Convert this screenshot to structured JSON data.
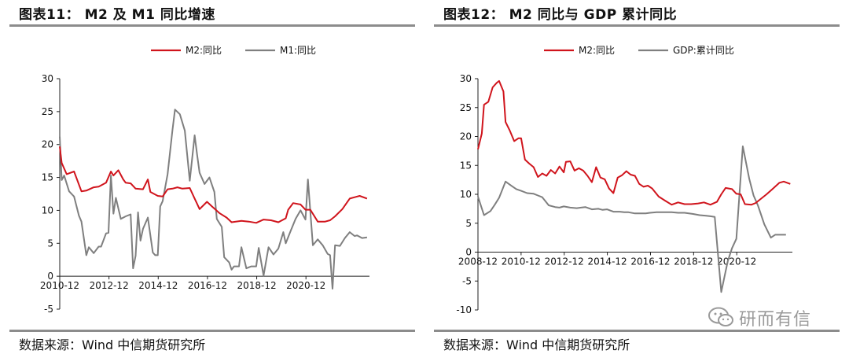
{
  "charts": [
    {
      "figure_title": "图表11： M2 及 M1 同比增速",
      "source_text": "数据来源：Wind 中信期货研究所"
    },
    {
      "figure_title": "图表12： M2 同比与 GDP 累计同比",
      "source_text": "数据来源：Wind 中信期货研究所"
    }
  ],
  "watermark": {
    "text": "研而有信",
    "icon": "wechat-icon"
  },
  "chart_data": [
    {
      "type": "line",
      "title": "图表11： M2 及 M1 同比增速",
      "xlabel": "",
      "ylabel": "",
      "ylim": [
        -5,
        30
      ],
      "yticks": [
        -5,
        0,
        5,
        10,
        15,
        20,
        25,
        30
      ],
      "xlim": [
        2010.92,
        2023.5
      ],
      "xticks": [
        {
          "x": 2010.92,
          "label": "2010-12"
        },
        {
          "x": 2012.92,
          "label": "2012-12"
        },
        {
          "x": 2014.92,
          "label": "2014-12"
        },
        {
          "x": 2016.92,
          "label": "2016-12"
        },
        {
          "x": 2018.92,
          "label": "2018-12"
        },
        {
          "x": 2020.92,
          "label": "2020-12"
        }
      ],
      "grid": false,
      "legend": "top-center",
      "series": [
        {
          "name": "M2:同比",
          "color": "#d0141c",
          "x": [
            2010.92,
            2011.0,
            2011.2,
            2011.5,
            2011.8,
            2012.0,
            2012.3,
            2012.5,
            2012.8,
            2013.0,
            2013.1,
            2013.3,
            2013.5,
            2013.6,
            2013.8,
            2014.0,
            2014.3,
            2014.5,
            2014.6,
            2014.9,
            2015.1,
            2015.3,
            2015.5,
            2015.7,
            2015.9,
            2016.2,
            2016.4,
            2016.6,
            2016.9,
            2017.1,
            2017.4,
            2017.7,
            2017.9,
            2018.3,
            2018.6,
            2018.9,
            2019.2,
            2019.5,
            2019.8,
            2020.1,
            2020.2,
            2020.4,
            2020.7,
            2020.9,
            2021.1,
            2021.4,
            2021.7,
            2021.9,
            2022.1,
            2022.4,
            2022.7,
            2022.9,
            2023.1,
            2023.4
          ],
          "y": [
            19.7,
            17.2,
            15.5,
            15.9,
            12.9,
            13.0,
            13.5,
            13.6,
            14.2,
            15.9,
            15.3,
            16.1,
            14.7,
            14.2,
            14.1,
            13.3,
            13.2,
            14.7,
            12.8,
            12.2,
            12.1,
            13.2,
            13.3,
            13.5,
            13.3,
            13.4,
            11.8,
            10.2,
            11.3,
            10.6,
            9.6,
            8.9,
            8.2,
            8.4,
            8.3,
            8.1,
            8.6,
            8.5,
            8.2,
            8.8,
            10.1,
            11.1,
            10.9,
            10.1,
            10.1,
            8.3,
            8.3,
            8.5,
            9.1,
            10.2,
            11.8,
            12.0,
            12.2,
            11.8
          ]
        },
        {
          "name": "M1:同比",
          "color": "#7f7f7f",
          "x": [
            2010.92,
            2011.0,
            2011.1,
            2011.3,
            2011.5,
            2011.7,
            2011.8,
            2012.0,
            2012.1,
            2012.3,
            2012.5,
            2012.6,
            2012.8,
            2012.9,
            2013.0,
            2013.1,
            2013.2,
            2013.4,
            2013.6,
            2013.8,
            2013.9,
            2014.0,
            2014.1,
            2014.2,
            2014.3,
            2014.5,
            2014.7,
            2014.8,
            2014.9,
            2015.0,
            2015.1,
            2015.3,
            2015.5,
            2015.6,
            2015.8,
            2016.0,
            2016.2,
            2016.4,
            2016.5,
            2016.6,
            2016.8,
            2017.0,
            2017.2,
            2017.3,
            2017.5,
            2017.6,
            2017.8,
            2017.9,
            2018.0,
            2018.2,
            2018.3,
            2018.5,
            2018.7,
            2018.9,
            2019.0,
            2019.2,
            2019.4,
            2019.6,
            2019.8,
            2020.0,
            2020.1,
            2020.3,
            2020.5,
            2020.7,
            2020.9,
            2021.0,
            2021.2,
            2021.4,
            2021.6,
            2021.8,
            2021.9,
            2022.0,
            2022.1,
            2022.3,
            2022.5,
            2022.7,
            2022.9,
            2023.0,
            2023.2,
            2023.4
          ],
          "y": [
            21.2,
            14.6,
            15.3,
            12.9,
            12.1,
            9.2,
            8.3,
            3.2,
            4.4,
            3.5,
            4.5,
            4.5,
            6.5,
            6.6,
            15.3,
            9.5,
            11.9,
            8.7,
            9.1,
            9.4,
            1.2,
            3.1,
            9.7,
            5.4,
            7.2,
            8.9,
            3.6,
            3.2,
            3.2,
            10.6,
            11.4,
            15.5,
            22.2,
            25.3,
            24.6,
            22.1,
            14.5,
            21.4,
            18.4,
            15.7,
            14.0,
            15.0,
            12.8,
            8.7,
            7.5,
            2.9,
            2.1,
            1.0,
            1.5,
            1.5,
            4.4,
            1.2,
            1.5,
            1.5,
            4.3,
            0.1,
            4.4,
            3.3,
            4.2,
            6.7,
            5.0,
            6.9,
            8.7,
            10.0,
            8.6,
            14.7,
            4.7,
            5.6,
            4.7,
            3.4,
            3.2,
            -1.9,
            4.7,
            4.6,
            5.8,
            6.7,
            6.1,
            6.2,
            5.8,
            5.9
          ]
        }
      ]
    },
    {
      "type": "line",
      "title": "图表12： M2 同比与 GDP 累计同比",
      "xlabel": "",
      "ylabel": "",
      "ylim": [
        -10,
        30
      ],
      "yticks": [
        -10,
        -5,
        0,
        5,
        10,
        15,
        20,
        25,
        30
      ],
      "xlim": [
        2008.92,
        2023.5
      ],
      "xticks": [
        {
          "x": 2008.92,
          "label": "2008-12"
        },
        {
          "x": 2010.92,
          "label": "2010-12"
        },
        {
          "x": 2012.92,
          "label": "2012-12"
        },
        {
          "x": 2014.92,
          "label": "2014-12"
        },
        {
          "x": 2016.92,
          "label": "2016-12"
        },
        {
          "x": 2018.92,
          "label": "2018-12"
        },
        {
          "x": 2020.92,
          "label": "2020-12"
        }
      ],
      "grid": false,
      "legend": "top-center",
      "series": [
        {
          "name": "M2:同比",
          "color": "#d0141c",
          "x": [
            2008.92,
            2009.1,
            2009.2,
            2009.4,
            2009.6,
            2009.8,
            2009.9,
            2010.1,
            2010.2,
            2010.4,
            2010.6,
            2010.8,
            2010.92,
            2011.1,
            2011.3,
            2011.5,
            2011.7,
            2011.9,
            2012.1,
            2012.3,
            2012.5,
            2012.7,
            2012.9,
            2013.0,
            2013.2,
            2013.4,
            2013.6,
            2013.8,
            2014.0,
            2014.2,
            2014.4,
            2014.6,
            2014.8,
            2015.0,
            2015.2,
            2015.4,
            2015.6,
            2015.8,
            2016.0,
            2016.2,
            2016.4,
            2016.6,
            2016.8,
            2017.0,
            2017.3,
            2017.6,
            2017.9,
            2018.2,
            2018.5,
            2018.8,
            2019.1,
            2019.4,
            2019.7,
            2020.0,
            2020.2,
            2020.4,
            2020.7,
            2020.9,
            2021.1,
            2021.3,
            2021.6,
            2021.8,
            2022.0,
            2022.3,
            2022.6,
            2022.9,
            2023.1,
            2023.4
          ],
          "y": [
            17.8,
            20.5,
            25.5,
            26.0,
            28.5,
            29.3,
            29.6,
            27.8,
            22.5,
            21.0,
            19.2,
            19.7,
            19.7,
            16.0,
            15.3,
            14.7,
            13.0,
            13.6,
            13.2,
            14.2,
            13.6,
            14.8,
            13.8,
            15.6,
            15.7,
            14.1,
            14.5,
            14.1,
            13.2,
            12.1,
            14.7,
            12.9,
            12.6,
            11.0,
            10.2,
            12.9,
            13.3,
            14.0,
            13.4,
            13.2,
            11.8,
            11.3,
            11.5,
            11.0,
            9.6,
            8.9,
            8.2,
            8.6,
            8.3,
            8.3,
            8.4,
            8.6,
            8.2,
            8.7,
            10.0,
            11.1,
            10.9,
            10.1,
            10.0,
            8.3,
            8.2,
            8.5,
            9.1,
            10.0,
            11.0,
            12.0,
            12.2,
            11.8
          ]
        },
        {
          "name": "GDP:累计同比",
          "color": "#7f7f7f",
          "x": [
            2008.92,
            2009.2,
            2009.5,
            2009.7,
            2009.9,
            2010.2,
            2010.5,
            2010.7,
            2010.92,
            2011.2,
            2011.5,
            2011.7,
            2011.9,
            2012.2,
            2012.5,
            2012.7,
            2012.9,
            2013.2,
            2013.5,
            2013.7,
            2013.9,
            2014.2,
            2014.5,
            2014.7,
            2014.9,
            2015.2,
            2015.5,
            2015.7,
            2015.9,
            2016.2,
            2016.5,
            2016.7,
            2016.9,
            2017.2,
            2017.5,
            2017.7,
            2017.9,
            2018.2,
            2018.5,
            2018.7,
            2018.9,
            2019.2,
            2019.5,
            2019.7,
            2019.9,
            2020.2,
            2020.5,
            2020.7,
            2020.9,
            2021.2,
            2021.5,
            2021.7,
            2021.9,
            2022.2,
            2022.5,
            2022.7,
            2022.9,
            2023.2
          ],
          "y": [
            9.6,
            6.4,
            7.1,
            8.2,
            9.4,
            12.2,
            11.4,
            10.9,
            10.6,
            10.2,
            10.1,
            9.8,
            9.5,
            8.1,
            7.8,
            7.7,
            7.9,
            7.7,
            7.6,
            7.7,
            7.8,
            7.4,
            7.5,
            7.3,
            7.4,
            7.0,
            7.0,
            6.9,
            6.9,
            6.7,
            6.7,
            6.7,
            6.8,
            6.9,
            6.9,
            6.9,
            6.9,
            6.8,
            6.8,
            6.7,
            6.6,
            6.4,
            6.3,
            6.2,
            6.1,
            -6.9,
            -1.6,
            0.7,
            2.3,
            18.3,
            12.7,
            9.8,
            8.1,
            4.8,
            2.5,
            3.0,
            3.0,
            3.0
          ]
        }
      ]
    }
  ]
}
